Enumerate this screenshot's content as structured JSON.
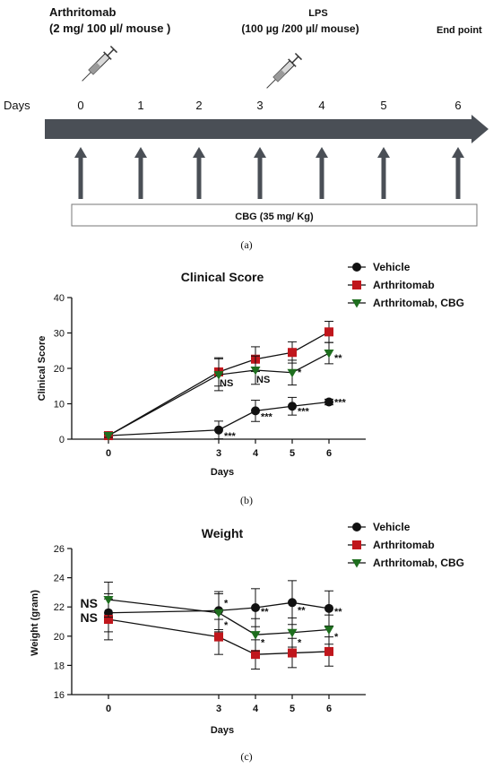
{
  "timeline": {
    "days_label": "Days",
    "days": [
      "0",
      "1",
      "2",
      "3",
      "4",
      "5",
      "6"
    ],
    "arthritomab_title": "Arthritomab",
    "arthritomab_dose": "(2 mg/ 100 µl/ mouse )",
    "lps_title": "LPS",
    "lps_dose": "(100 µg /200 µl/ mouse)",
    "end_point": "End point",
    "cbg_box": "CBG (35 mg/ Kg)",
    "caption": "(a)"
  },
  "colors": {
    "vehicle": "#111111",
    "arthritomab": "#c0161c",
    "cbg": "#1e6e1e",
    "arrow": "#4a4f56"
  },
  "chart_data": [
    {
      "type": "line",
      "title": "Clinical Score",
      "xlabel": "Days",
      "ylabel": "Clinical Score",
      "x": [
        0,
        3,
        4,
        5,
        6
      ],
      "x_ticks": [
        "0",
        "3",
        "4",
        "5",
        "6"
      ],
      "y_ticks": [
        "0",
        "10",
        "20",
        "30",
        "40"
      ],
      "ylim": [
        0,
        40
      ],
      "grid": false,
      "legend_position": "top-right",
      "caption": "(b)",
      "series": [
        {
          "name": "Vehicle",
          "marker": "circle",
          "values": [
            1,
            2.6,
            8,
            9.3,
            10.5
          ],
          "err": [
            0.5,
            2.5,
            3,
            2.5,
            0.8
          ]
        },
        {
          "name": "Arthritomab",
          "marker": "square",
          "values": [
            1,
            19,
            22.6,
            24.5,
            30.3
          ],
          "err": [
            0.5,
            4,
            3.5,
            3,
            3
          ]
        },
        {
          "name": "Arthritomab, CBG",
          "marker": "triangle",
          "values": [
            1,
            18.2,
            19.5,
            18.8,
            24.3
          ],
          "err": [
            0.5,
            4.5,
            4,
            3.5,
            3
          ]
        }
      ],
      "annotations": [
        {
          "x": 3,
          "y": 1,
          "text": "***"
        },
        {
          "x": 4,
          "y": 6.5,
          "text": "***"
        },
        {
          "x": 5,
          "y": 8,
          "text": "***"
        },
        {
          "x": 6,
          "y": 10.5,
          "text": "***"
        },
        {
          "x": 3,
          "y": 16,
          "text": "NS"
        },
        {
          "x": 4,
          "y": 17,
          "text": "NS"
        },
        {
          "x": 5,
          "y": 19,
          "text": "*"
        },
        {
          "x": 6,
          "y": 23,
          "text": "**"
        }
      ]
    },
    {
      "type": "line",
      "title": "Weight",
      "xlabel": "Days",
      "ylabel": "Weight (gram)",
      "x": [
        0,
        3,
        4,
        5,
        6
      ],
      "x_ticks": [
        "0",
        "3",
        "4",
        "5",
        "6"
      ],
      "y_ticks": [
        "16",
        "18",
        "20",
        "22",
        "24",
        "26"
      ],
      "ylim": [
        16,
        26
      ],
      "grid": false,
      "legend_position": "top-right",
      "caption": "(c)",
      "series": [
        {
          "name": "Vehicle",
          "marker": "circle",
          "values": [
            21.6,
            21.75,
            21.95,
            22.3,
            21.9
          ],
          "err": [
            1.3,
            1.3,
            1.3,
            1.5,
            1.2
          ]
        },
        {
          "name": "Arthritomab",
          "marker": "square",
          "values": [
            21.15,
            19.95,
            18.75,
            18.85,
            18.95
          ],
          "err": [
            1.4,
            1.2,
            1.0,
            1.0,
            1.0
          ]
        },
        {
          "name": "Arthritomab, CBG",
          "marker": "triangle",
          "values": [
            22.5,
            21.6,
            20.1,
            20.25,
            20.45
          ],
          "err": [
            1.2,
            1.3,
            1.1,
            1.0,
            1.0
          ]
        }
      ],
      "annotations": [
        {
          "x": 3,
          "y": 22.3,
          "text": "*"
        },
        {
          "x": 3,
          "y": 20.8,
          "text": "*"
        },
        {
          "x": 4,
          "y": 21.7,
          "text": "**"
        },
        {
          "x": 4,
          "y": 19.6,
          "text": "*"
        },
        {
          "x": 5,
          "y": 21.8,
          "text": "**"
        },
        {
          "x": 5,
          "y": 19.6,
          "text": "*"
        },
        {
          "x": 6,
          "y": 21.7,
          "text": "**"
        },
        {
          "x": 6,
          "y": 20.0,
          "text": "*"
        },
        {
          "x": 0,
          "y": 22.2,
          "text": "NS"
        },
        {
          "x": 0,
          "y": 21.2,
          "text": "NS"
        }
      ]
    }
  ]
}
